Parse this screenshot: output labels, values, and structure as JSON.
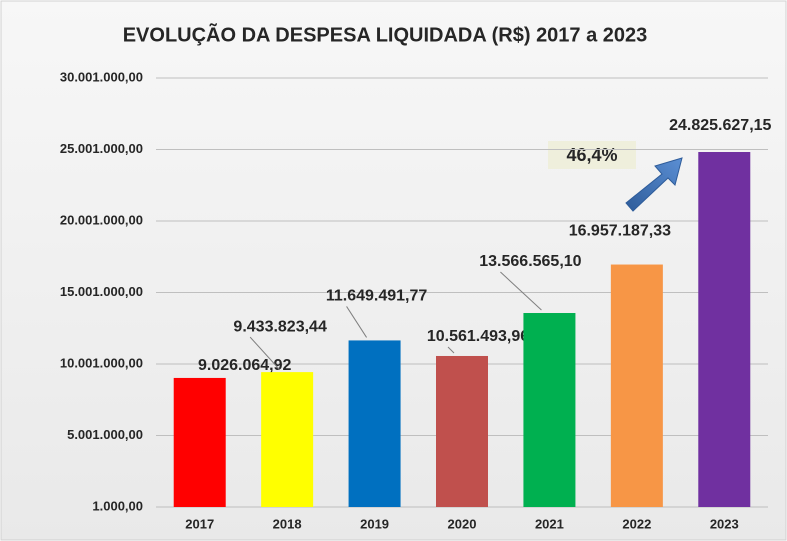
{
  "chart_data": {
    "type": "bar",
    "title": "EVOLUÇÃO DA DESPESA LIQUIDADA (R$) 2017 a 2023",
    "categories": [
      "2017",
      "2018",
      "2019",
      "2020",
      "2021",
      "2022",
      "2023"
    ],
    "values": [
      9026064.92,
      9433823.44,
      11649491.77,
      10561493.96,
      13566565.1,
      16957187.33,
      24825627.15
    ],
    "value_labels": [
      "9.026.064,92",
      "9.433.823,44",
      "11.649.491,77",
      "10.561.493,96",
      "13.566.565,10",
      "16.957.187,33",
      "24.825.627,15"
    ],
    "colors": [
      "#ff0000",
      "#ffff00",
      "#0070c0",
      "#c0504d",
      "#00b050",
      "#f79646",
      "#7030a0"
    ],
    "ylim": [
      1000,
      30001000
    ],
    "yticks": [
      {
        "value": 1000,
        "label": "1.000,00"
      },
      {
        "value": 5001000,
        "label": "5.001.000,00"
      },
      {
        "value": 10001000,
        "label": "10.001.000,00"
      },
      {
        "value": 15001000,
        "label": "15.001.000,00"
      },
      {
        "value": 20001000,
        "label": "20.001.000,00"
      },
      {
        "value": 25001000,
        "label": "25.001.000,00"
      },
      {
        "value": 30001000,
        "label": "30.001.000,00"
      }
    ],
    "grid": true,
    "annotation": "46,4%"
  }
}
